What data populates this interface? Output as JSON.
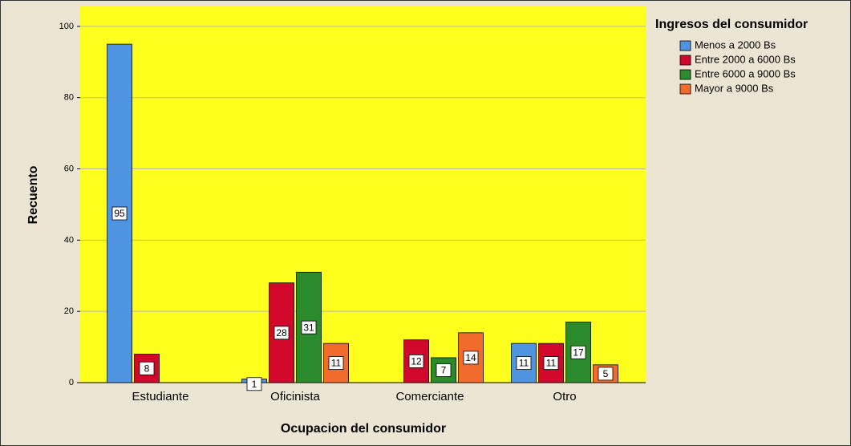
{
  "chart_data": {
    "type": "bar",
    "x_label": "Ocupacion del consumidor",
    "y_label": "Recuento",
    "legend_title": "Ingresos del consumidor",
    "legend": "right",
    "grid": true,
    "categories": [
      "Estudiante",
      "Oficinista",
      "Comerciante",
      "Otro"
    ],
    "series": [
      {
        "name": "Menos a 2000 Bs",
        "color": "#4f94e0",
        "values": [
          95,
          1,
          null,
          11
        ]
      },
      {
        "name": "Entre 2000 a 6000 Bs",
        "color": "#d1072b",
        "values": [
          8,
          28,
          12,
          11
        ]
      },
      {
        "name": "Entre 6000 a 9000 Bs",
        "color": "#2b8a2b",
        "values": [
          null,
          31,
          7,
          17
        ]
      },
      {
        "name": "Mayor a 9000 Bs",
        "color": "#f26b2e",
        "values": [
          null,
          11,
          14,
          5
        ]
      }
    ],
    "ylim": [
      0,
      105.6
    ],
    "yticks": [
      0,
      20,
      40,
      60,
      80,
      100
    ]
  }
}
